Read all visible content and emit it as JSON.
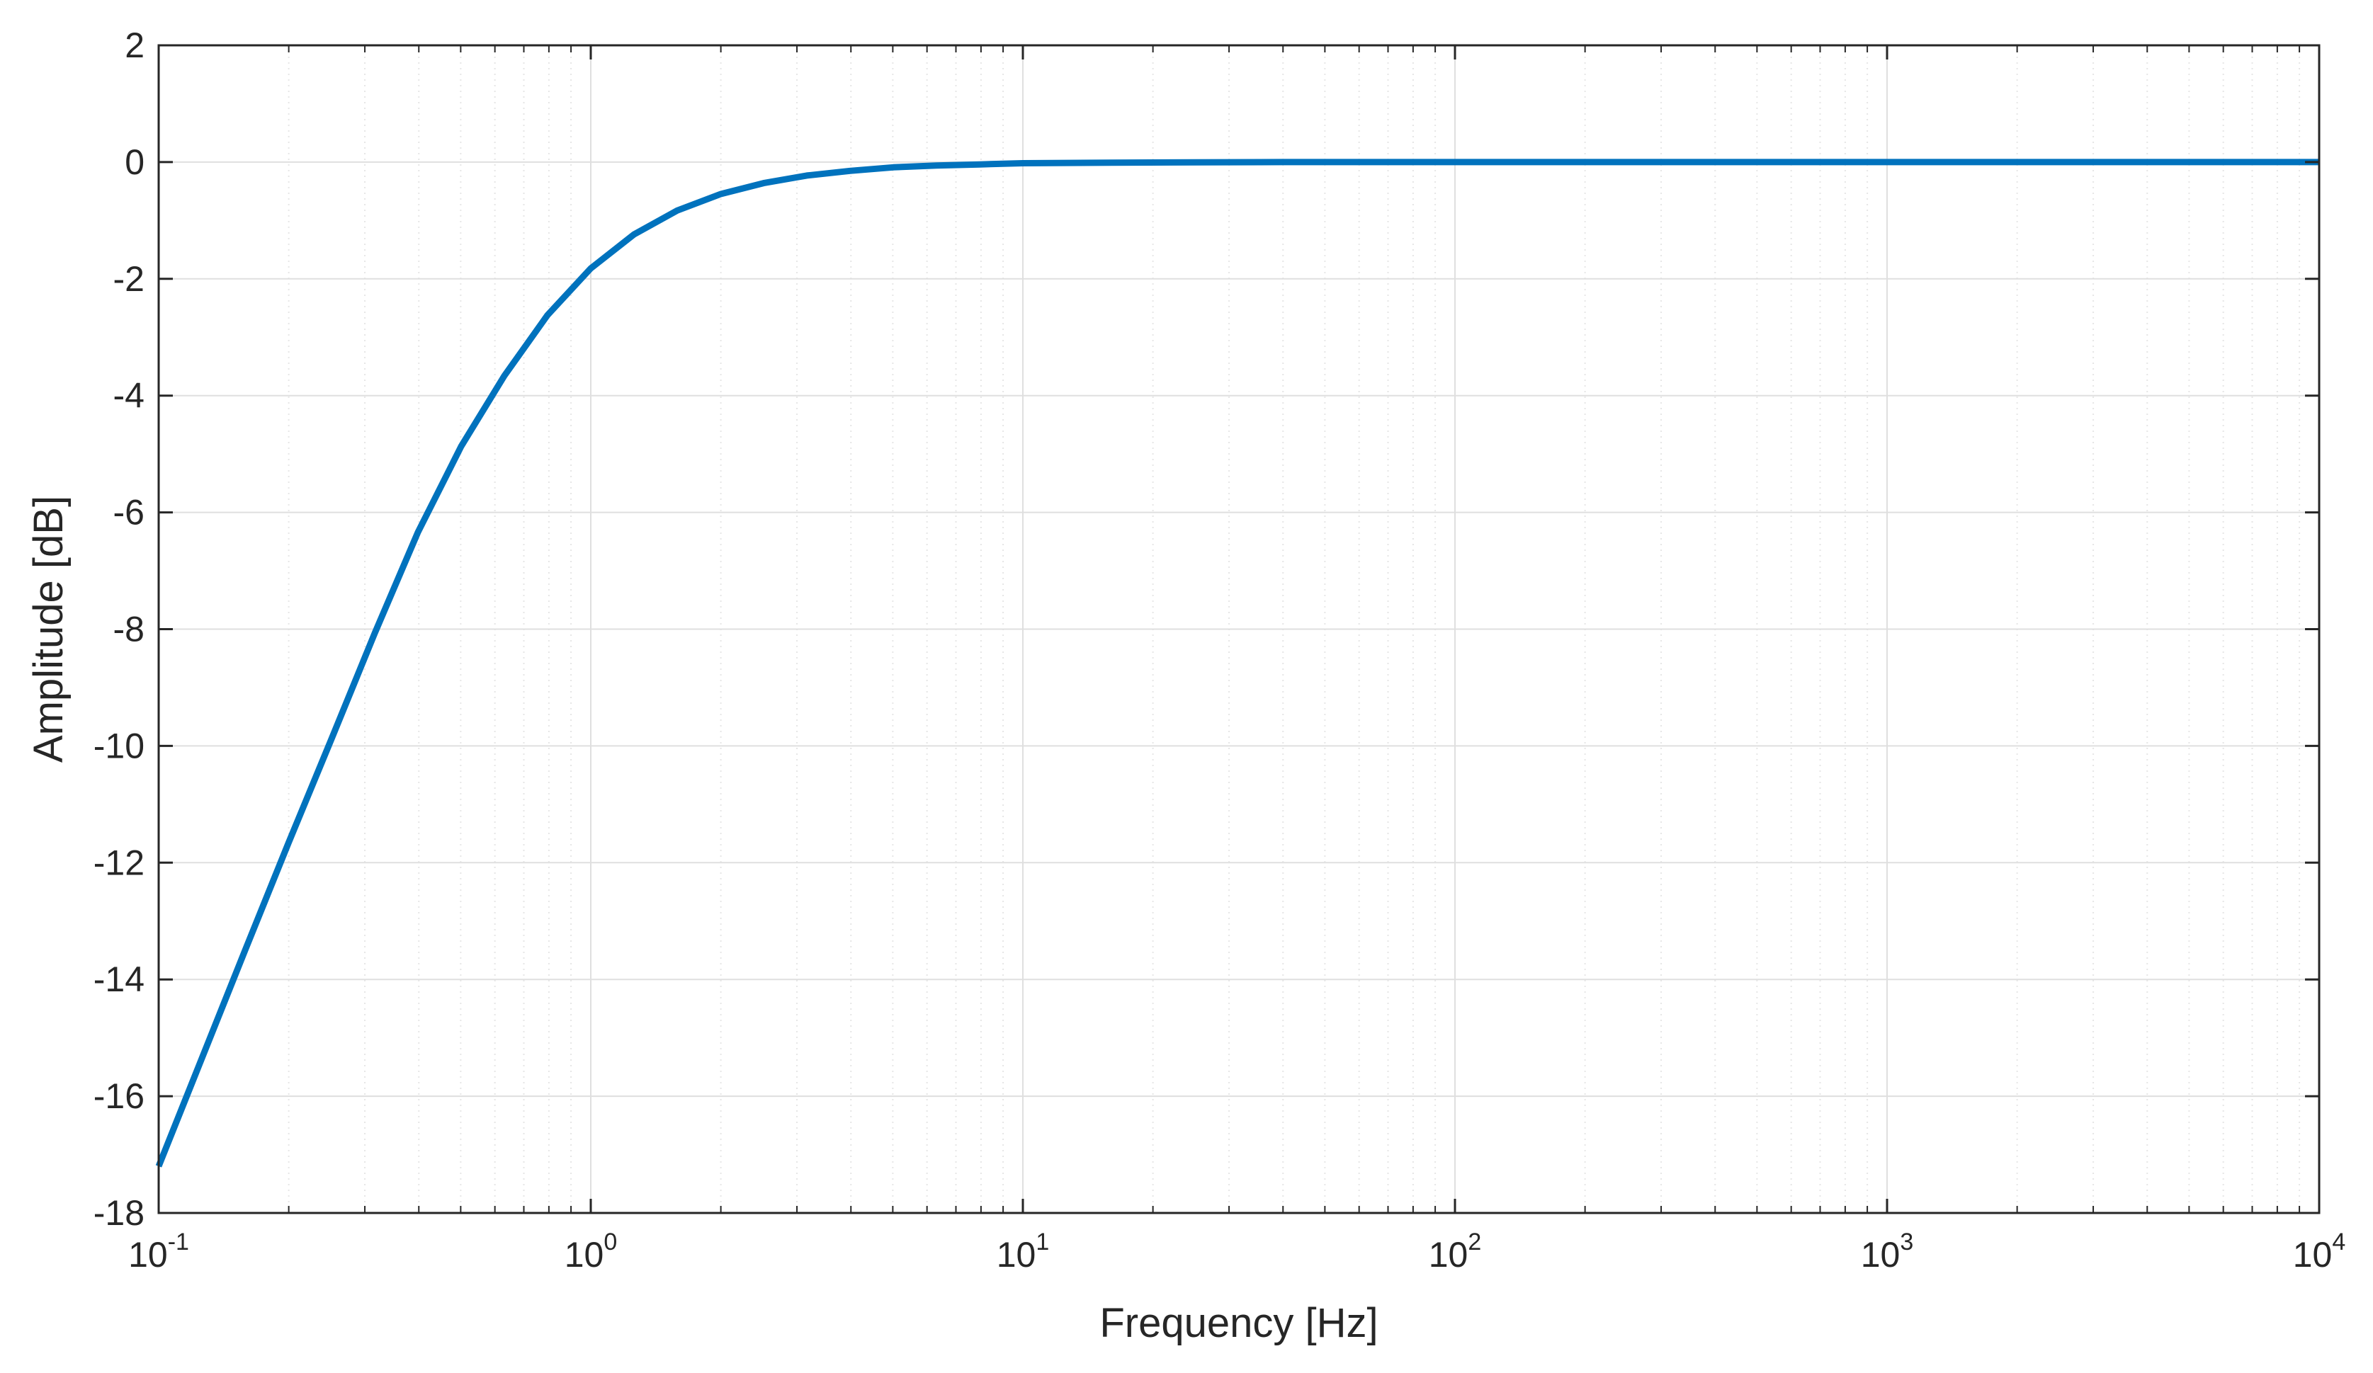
{
  "chart_data": {
    "type": "line",
    "title": "",
    "xlabel": "Frequency [Hz]",
    "ylabel": "Amplitude [dB]",
    "x_scale": "log",
    "xlim": [
      0.1,
      10000
    ],
    "ylim": [
      -18,
      2
    ],
    "x_ticks": [
      {
        "base": "10",
        "exp": "-1",
        "value": 0.1
      },
      {
        "base": "10",
        "exp": "0",
        "value": 1
      },
      {
        "base": "10",
        "exp": "1",
        "value": 10
      },
      {
        "base": "10",
        "exp": "2",
        "value": 100
      },
      {
        "base": "10",
        "exp": "3",
        "value": 1000
      },
      {
        "base": "10",
        "exp": "4",
        "value": 10000
      }
    ],
    "y_ticks": [
      "2",
      "0",
      "-2",
      "-4",
      "-6",
      "-8",
      "-10",
      "-12",
      "-14",
      "-16",
      "-18"
    ],
    "grid": true,
    "minor_grid": true,
    "series": [
      {
        "color": "#0072BD",
        "x": [
          0.1,
          0.1259,
          0.1585,
          0.1995,
          0.2512,
          0.3162,
          0.3981,
          0.5012,
          0.631,
          0.7943,
          1.0,
          1.259,
          1.585,
          1.995,
          2.512,
          3.162,
          3.981,
          5.012,
          6.31,
          7.943,
          10,
          15.85,
          25.12,
          39.81,
          63.1,
          100,
          1000,
          10000
        ],
        "y": [
          -17.2,
          -15.35,
          -13.5,
          -11.67,
          -9.88,
          -8.07,
          -6.34,
          -4.87,
          -3.66,
          -2.62,
          -1.82,
          -1.24,
          -0.83,
          -0.55,
          -0.36,
          -0.23,
          -0.15,
          -0.09,
          -0.06,
          -0.04,
          -0.02,
          -0.01,
          -0.005,
          0.0,
          0.0,
          0.0,
          0.0,
          0.0
        ]
      }
    ]
  },
  "colors": {
    "line": "#0072BD",
    "axis": "#262626",
    "grid_major": "#dfdfdf",
    "grid_minor": "#e6e6e6",
    "background": "#ffffff"
  }
}
